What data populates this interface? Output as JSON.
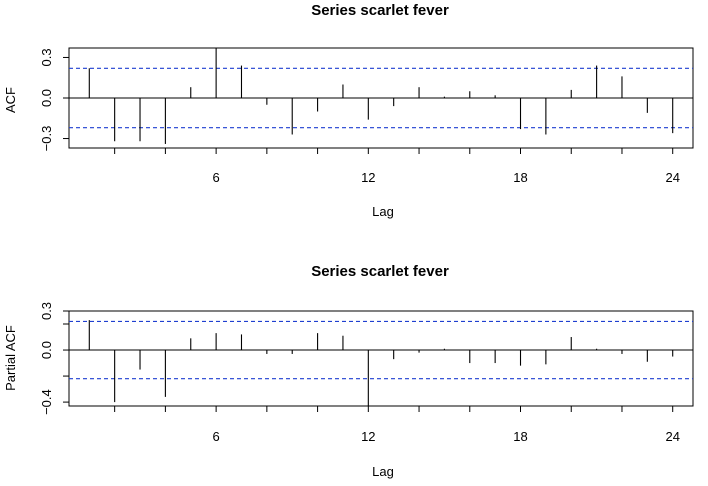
{
  "chart_data": [
    {
      "type": "bar",
      "title": "Series  scarlet fever",
      "xlabel": "Lag",
      "ylabel": "ACF",
      "x": [
        1,
        2,
        3,
        4,
        5,
        6,
        7,
        8,
        9,
        10,
        11,
        12,
        13,
        14,
        15,
        16,
        17,
        18,
        19,
        20,
        21,
        22,
        23,
        24
      ],
      "values": [
        0.22,
        -0.32,
        -0.32,
        -0.34,
        0.08,
        0.37,
        0.24,
        -0.05,
        -0.27,
        -0.1,
        0.1,
        -0.16,
        -0.06,
        0.08,
        0.01,
        0.05,
        0.02,
        -0.23,
        -0.27,
        0.06,
        0.24,
        0.16,
        -0.11,
        -0.26
      ],
      "ci": 0.22,
      "xticks": [
        6,
        12,
        18,
        24
      ],
      "xtick_labels": [
        "6",
        "12",
        "18",
        "24"
      ],
      "yticks": [
        -0.3,
        0.0,
        0.3
      ],
      "ytick_labels": [
        "−0.3",
        "0.0",
        "0.3"
      ],
      "xlim": [
        0.2,
        24.8
      ],
      "ylim": [
        -0.37,
        0.37
      ],
      "grid": false,
      "ci_color": "#1f3fd0",
      "bar_color": "#000000"
    },
    {
      "type": "bar",
      "title": "Series  scarlet fever",
      "xlabel": "Lag",
      "ylabel": "Partial ACF",
      "x": [
        1,
        2,
        3,
        4,
        5,
        6,
        7,
        8,
        9,
        10,
        11,
        12,
        13,
        14,
        15,
        16,
        17,
        18,
        19,
        20,
        21,
        22,
        23,
        24
      ],
      "values": [
        0.23,
        -0.4,
        -0.15,
        -0.36,
        0.09,
        0.13,
        0.12,
        -0.03,
        -0.03,
        0.13,
        0.11,
        -0.43,
        -0.07,
        -0.02,
        0.01,
        -0.1,
        -0.1,
        -0.12,
        -0.11,
        0.1,
        0.01,
        -0.03,
        -0.09,
        -0.05
      ],
      "ci": 0.22,
      "xticks": [
        6,
        12,
        18,
        24
      ],
      "xtick_labels": [
        "6",
        "12",
        "18",
        "24"
      ],
      "yticks": [
        -0.4,
        -0.2,
        0.0,
        0.2
      ],
      "ytick_labels": [
        "−0.4",
        "",
        "0.0",
        ""
      ],
      "extra_ytick_labels": [
        {
          "value": 0.3,
          "text": "0.3"
        },
        {
          "value": -0.4,
          "text": "−0.4"
        }
      ],
      "xlim": [
        0.2,
        24.8
      ],
      "ylim": [
        -0.43,
        0.3
      ],
      "grid": false,
      "ci_color": "#1f3fd0",
      "bar_color": "#000000"
    }
  ]
}
